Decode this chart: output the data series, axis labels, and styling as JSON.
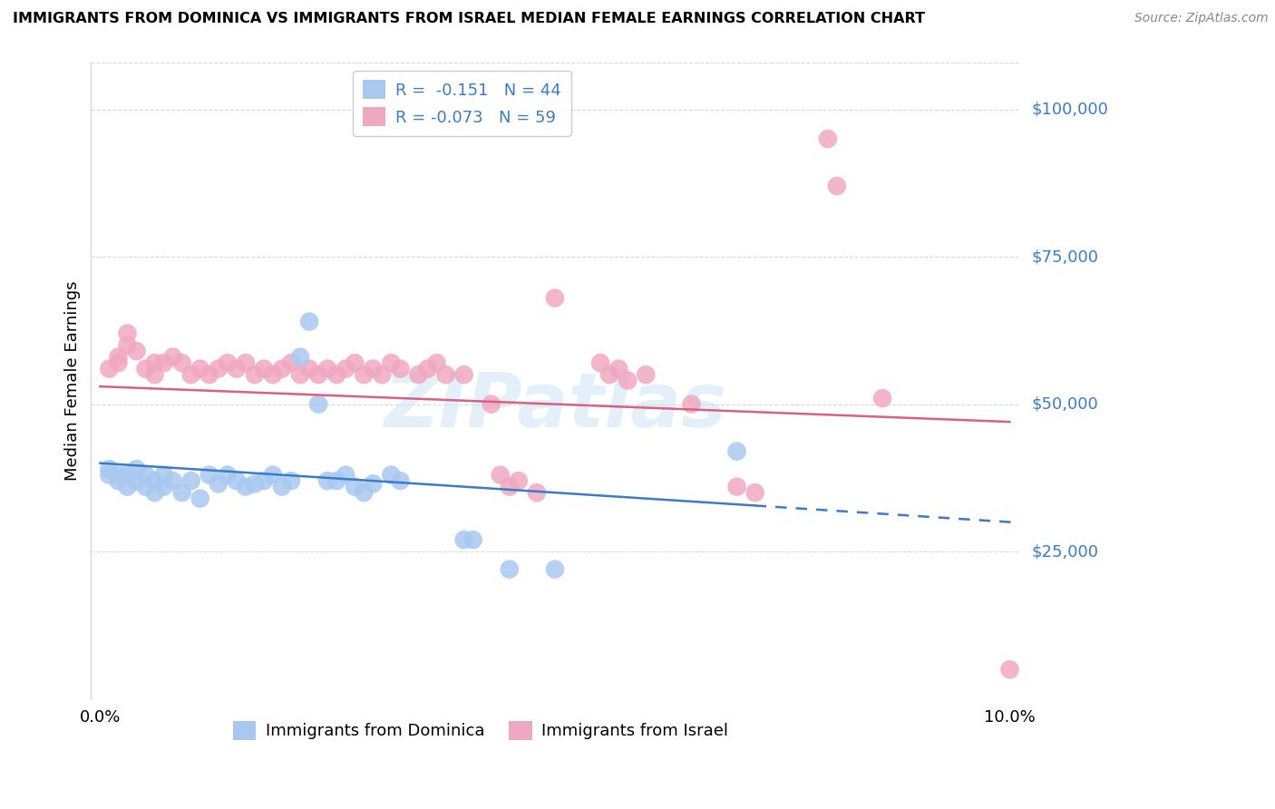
{
  "title": "IMMIGRANTS FROM DOMINICA VS IMMIGRANTS FROM ISRAEL MEDIAN FEMALE EARNINGS CORRELATION CHART",
  "source": "Source: ZipAtlas.com",
  "ylabel": "Median Female Earnings",
  "ytick_labels": [
    "$25,000",
    "$50,000",
    "$75,000",
    "$100,000"
  ],
  "ytick_values": [
    25000,
    50000,
    75000,
    100000
  ],
  "xlim": [
    -0.001,
    0.101
  ],
  "ylim": [
    0,
    108000
  ],
  "watermark": "ZIPatlas",
  "dominica_color": "#a8c8f0",
  "israel_color": "#f0a8c0",
  "dominica_line_color": "#3a7cc7",
  "israel_line_color": "#d96080",
  "grid_color": "#d8d8d8",
  "dominica_points": [
    [
      0.001,
      39000
    ],
    [
      0.001,
      38000
    ],
    [
      0.002,
      37000
    ],
    [
      0.002,
      38000
    ],
    [
      0.003,
      36000
    ],
    [
      0.003,
      38000
    ],
    [
      0.004,
      37000
    ],
    [
      0.004,
      39000
    ],
    [
      0.005,
      36000
    ],
    [
      0.005,
      38000
    ],
    [
      0.006,
      37000
    ],
    [
      0.006,
      35000
    ],
    [
      0.007,
      38000
    ],
    [
      0.007,
      36000
    ],
    [
      0.008,
      37000
    ],
    [
      0.009,
      35000
    ],
    [
      0.01,
      37000
    ],
    [
      0.011,
      34000
    ],
    [
      0.012,
      38000
    ],
    [
      0.013,
      36500
    ],
    [
      0.014,
      38000
    ],
    [
      0.015,
      37000
    ],
    [
      0.016,
      36000
    ],
    [
      0.017,
      36500
    ],
    [
      0.018,
      37000
    ],
    [
      0.019,
      38000
    ],
    [
      0.02,
      36000
    ],
    [
      0.021,
      37000
    ],
    [
      0.022,
      58000
    ],
    [
      0.023,
      64000
    ],
    [
      0.024,
      50000
    ],
    [
      0.025,
      37000
    ],
    [
      0.026,
      37000
    ],
    [
      0.027,
      38000
    ],
    [
      0.028,
      36000
    ],
    [
      0.029,
      35000
    ],
    [
      0.03,
      36500
    ],
    [
      0.032,
      38000
    ],
    [
      0.033,
      37000
    ],
    [
      0.04,
      27000
    ],
    [
      0.041,
      27000
    ],
    [
      0.045,
      22000
    ],
    [
      0.05,
      22000
    ],
    [
      0.07,
      42000
    ]
  ],
  "israel_points": [
    [
      0.001,
      56000
    ],
    [
      0.002,
      58000
    ],
    [
      0.002,
      57000
    ],
    [
      0.003,
      60000
    ],
    [
      0.003,
      62000
    ],
    [
      0.004,
      59000
    ],
    [
      0.005,
      56000
    ],
    [
      0.006,
      55000
    ],
    [
      0.006,
      57000
    ],
    [
      0.007,
      57000
    ],
    [
      0.008,
      58000
    ],
    [
      0.009,
      57000
    ],
    [
      0.01,
      55000
    ],
    [
      0.011,
      56000
    ],
    [
      0.012,
      55000
    ],
    [
      0.013,
      56000
    ],
    [
      0.014,
      57000
    ],
    [
      0.015,
      56000
    ],
    [
      0.016,
      57000
    ],
    [
      0.017,
      55000
    ],
    [
      0.018,
      56000
    ],
    [
      0.019,
      55000
    ],
    [
      0.02,
      56000
    ],
    [
      0.021,
      57000
    ],
    [
      0.022,
      55000
    ],
    [
      0.023,
      56000
    ],
    [
      0.024,
      55000
    ],
    [
      0.025,
      56000
    ],
    [
      0.026,
      55000
    ],
    [
      0.027,
      56000
    ],
    [
      0.028,
      57000
    ],
    [
      0.029,
      55000
    ],
    [
      0.03,
      56000
    ],
    [
      0.031,
      55000
    ],
    [
      0.032,
      57000
    ],
    [
      0.033,
      56000
    ],
    [
      0.035,
      55000
    ],
    [
      0.036,
      56000
    ],
    [
      0.037,
      57000
    ],
    [
      0.038,
      55000
    ],
    [
      0.04,
      55000
    ],
    [
      0.043,
      50000
    ],
    [
      0.044,
      38000
    ],
    [
      0.045,
      36000
    ],
    [
      0.046,
      37000
    ],
    [
      0.048,
      35000
    ],
    [
      0.05,
      68000
    ],
    [
      0.055,
      57000
    ],
    [
      0.056,
      55000
    ],
    [
      0.057,
      56000
    ],
    [
      0.058,
      54000
    ],
    [
      0.06,
      55000
    ],
    [
      0.065,
      50000
    ],
    [
      0.07,
      36000
    ],
    [
      0.072,
      35000
    ],
    [
      0.08,
      95000
    ],
    [
      0.081,
      87000
    ],
    [
      0.086,
      51000
    ],
    [
      0.1,
      5000
    ]
  ]
}
